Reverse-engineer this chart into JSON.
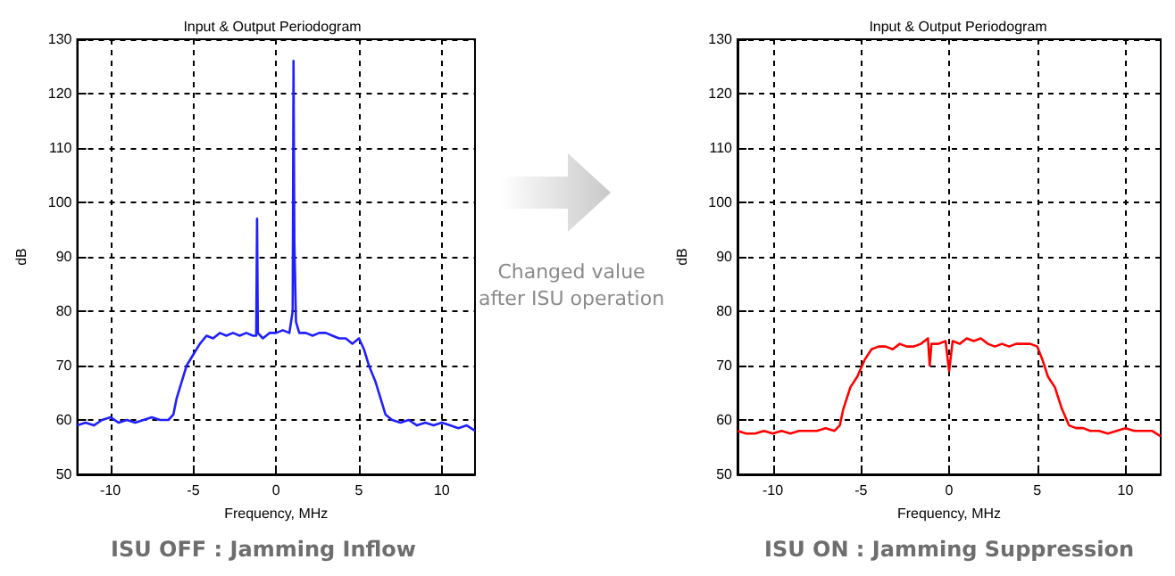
{
  "chart_data": [
    {
      "type": "line",
      "title": "Input & Output Periodogram",
      "xlabel": "Frequency, MHz",
      "ylabel": "dB",
      "annotations": [
        "ISU OFF : Jamming Inflow"
      ],
      "xlim": [
        -12,
        12
      ],
      "xticks": [
        -10,
        -5,
        0,
        5,
        10
      ],
      "ylim": [
        50,
        130
      ],
      "yticks": [
        50,
        60,
        70,
        80,
        90,
        100,
        110,
        120,
        130
      ],
      "grid": true,
      "x": [
        -12,
        -11.5,
        -11,
        -10.5,
        -10,
        -9.5,
        -9,
        -8.5,
        -8,
        -7.5,
        -7,
        -6.5,
        -6.2,
        -6,
        -5.7,
        -5.4,
        -5,
        -4.6,
        -4.2,
        -3.8,
        -3.4,
        -3,
        -2.6,
        -2.2,
        -1.8,
        -1.4,
        -1.2,
        -1.15,
        -1.1,
        -0.8,
        -0.4,
        0,
        0.4,
        0.8,
        1.0,
        1.05,
        1.1,
        1.2,
        1.4,
        1.8,
        2.2,
        2.6,
        3,
        3.4,
        3.8,
        4.2,
        4.6,
        5,
        5.3,
        5.6,
        6,
        6.3,
        6.6,
        7,
        7.5,
        8,
        8.5,
        9,
        9.5,
        10,
        10.5,
        11,
        11.5,
        12
      ],
      "series": [
        {
          "color": "#1f1fff",
          "values": [
            59,
            59.5,
            59,
            60,
            60.5,
            59.5,
            60,
            59.5,
            60,
            60.5,
            60,
            60,
            61,
            64,
            67,
            70,
            72,
            74,
            75.5,
            75,
            76,
            75.5,
            76,
            75.5,
            76,
            75.5,
            75.5,
            97,
            76,
            75,
            76,
            76,
            76.5,
            76,
            80,
            126,
            93,
            78,
            76,
            76,
            75.5,
            76,
            76,
            75.5,
            75,
            75,
            74,
            75,
            73,
            70,
            67,
            64,
            61,
            60,
            59.5,
            60,
            59,
            59.5,
            59,
            59.5,
            59,
            58.5,
            59,
            58
          ]
        }
      ]
    },
    {
      "type": "line",
      "title": "Input & Output Periodogram",
      "xlabel": "Frequency, MHz",
      "ylabel": "dB",
      "annotations": [
        "Changed value after ISU operation",
        "ISU ON : Jamming Suppression"
      ],
      "xlim": [
        -12,
        12
      ],
      "xticks": [
        -10,
        -5,
        0,
        5,
        10
      ],
      "ylim": [
        50,
        130
      ],
      "yticks": [
        50,
        60,
        70,
        80,
        90,
        100,
        110,
        120,
        130
      ],
      "grid": true,
      "x": [
        -12,
        -11.5,
        -11,
        -10.5,
        -10,
        -9.5,
        -9,
        -8.5,
        -8,
        -7.5,
        -7,
        -6.5,
        -6.2,
        -6,
        -5.6,
        -5.2,
        -4.8,
        -4.4,
        -4,
        -3.6,
        -3.2,
        -2.8,
        -2.4,
        -2,
        -1.6,
        -1.2,
        -1.1,
        -1,
        -0.6,
        -0.2,
        0,
        0.2,
        0.6,
        1,
        1.4,
        1.8,
        2.2,
        2.6,
        3,
        3.4,
        3.8,
        4.2,
        4.6,
        5,
        5.3,
        5.6,
        6,
        6.4,
        6.8,
        7.2,
        7.6,
        8,
        8.5,
        9,
        9.5,
        10,
        10.5,
        11,
        11.5,
        12
      ],
      "series": [
        {
          "color": "#ff0000",
          "values": [
            58,
            57.5,
            57.5,
            58,
            57.5,
            58,
            57.5,
            58,
            58,
            58,
            58.5,
            58,
            59,
            62,
            66,
            68,
            71,
            73,
            73.5,
            73.5,
            73,
            74,
            73.5,
            73.5,
            74,
            75,
            70,
            74,
            74,
            74.5,
            69,
            74.5,
            74,
            75,
            74.5,
            75,
            74,
            73.5,
            74,
            73.5,
            74,
            74,
            74,
            73.5,
            71,
            68,
            66,
            62,
            59,
            58.5,
            58.5,
            58,
            58,
            57.5,
            58,
            58.5,
            58,
            58,
            58,
            57
          ]
        }
      ]
    }
  ]
}
